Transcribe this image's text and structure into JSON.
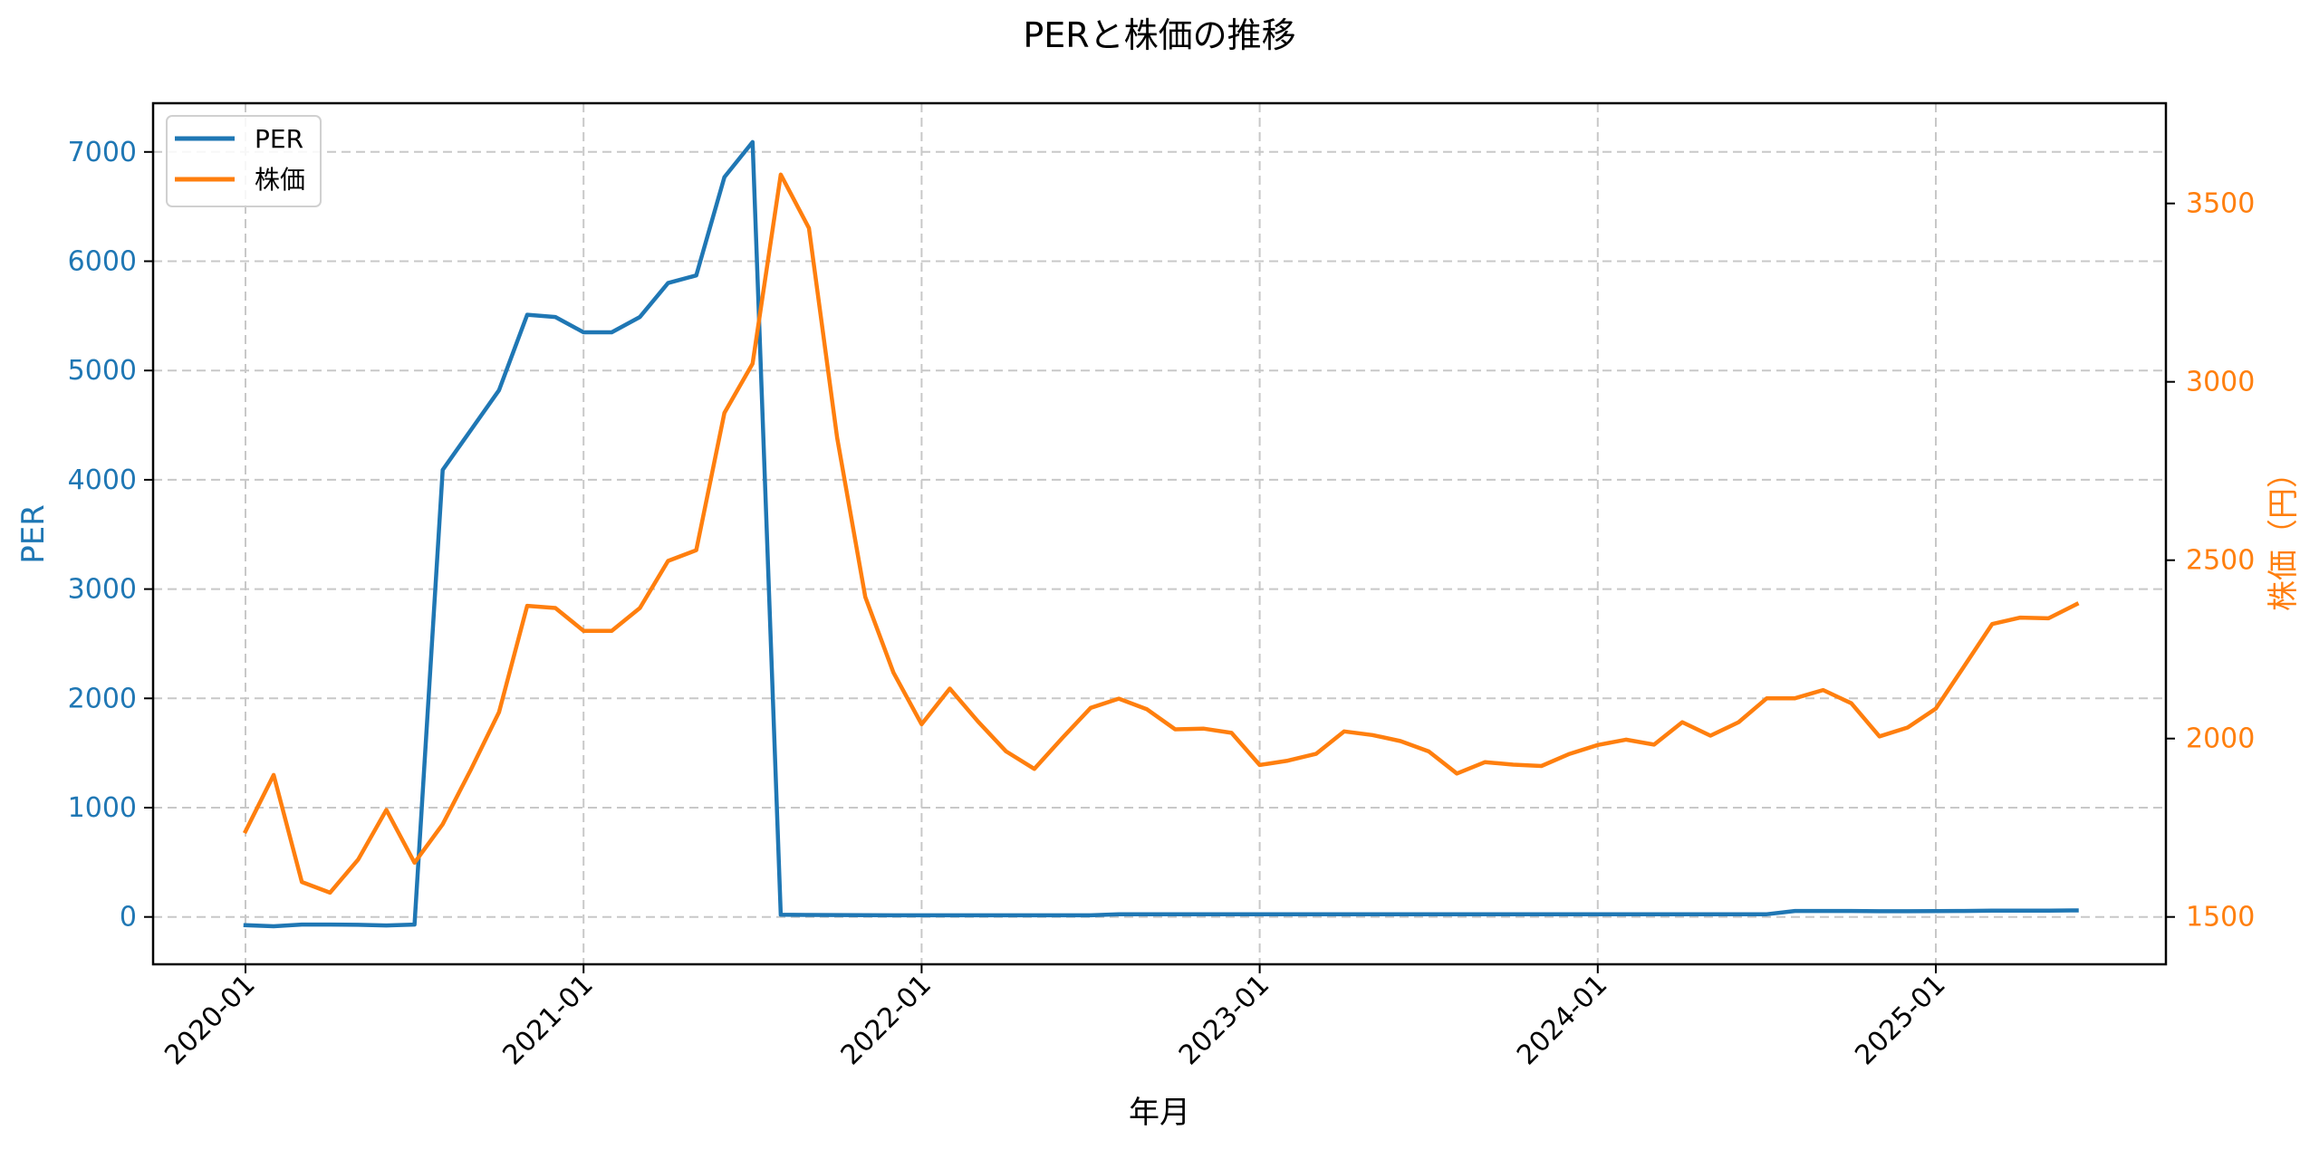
{
  "chart_data": {
    "type": "line",
    "title": "PERと株価の推移",
    "xlabel": "年月",
    "ylabel_left": "PER",
    "ylabel_right": "株価（円）",
    "ylim_left": [
      -440,
      7450
    ],
    "ylim_right": [
      1365,
      3780
    ],
    "yticks_left": [
      0,
      1000,
      2000,
      3000,
      4000,
      5000,
      6000,
      7000
    ],
    "yticks_right": [
      1500,
      2000,
      2500,
      3000,
      3500
    ],
    "xticks": [
      "2020-01",
      "2021-01",
      "2022-01",
      "2023-01",
      "2024-01",
      "2025-01"
    ],
    "xtick_index": [
      0,
      12,
      24,
      36,
      48,
      60
    ],
    "grid": true,
    "legend_position": "upper left",
    "colors": {
      "per": "#1f77b4",
      "price": "#ff7f0e"
    },
    "x": [
      "2020-01",
      "2020-02",
      "2020-03",
      "2020-04",
      "2020-05",
      "2020-06",
      "2020-07",
      "2020-08",
      "2020-09",
      "2020-10",
      "2020-11",
      "2020-12",
      "2021-01",
      "2021-02",
      "2021-03",
      "2021-04",
      "2021-05",
      "2021-06",
      "2021-07",
      "2021-08",
      "2021-09",
      "2021-10",
      "2021-11",
      "2021-12",
      "2022-01",
      "2022-02",
      "2022-03",
      "2022-04",
      "2022-05",
      "2022-06",
      "2022-07",
      "2022-08",
      "2022-09",
      "2022-10",
      "2022-11",
      "2022-12",
      "2023-01",
      "2023-02",
      "2023-03",
      "2023-04",
      "2023-05",
      "2023-06",
      "2023-07",
      "2023-08",
      "2023-09",
      "2023-10",
      "2023-11",
      "2023-12",
      "2024-01",
      "2024-02",
      "2024-03",
      "2024-04",
      "2024-05",
      "2024-06",
      "2024-07",
      "2024-08",
      "2024-09",
      "2024-10",
      "2024-11",
      "2024-12",
      "2025-01",
      "2025-02",
      "2025-03",
      "2025-04",
      "2025-05",
      "2025-06"
    ],
    "series": [
      {
        "name": "PER",
        "axis": "left",
        "values": [
          -75,
          -85,
          -70,
          -70,
          -72,
          -78,
          -70,
          4090,
          4455,
          4820,
          5510,
          5490,
          5350,
          5350,
          5490,
          5800,
          5870,
          6770,
          7090,
          20,
          18,
          17,
          16,
          15,
          15,
          15,
          15,
          15,
          15,
          15,
          15,
          25,
          25,
          25,
          25,
          25,
          25,
          25,
          25,
          25,
          25,
          25,
          25,
          25,
          25,
          25,
          25,
          25,
          25,
          25,
          25,
          25,
          25,
          25,
          25,
          55,
          55,
          55,
          52,
          52,
          53,
          55,
          58,
          58,
          58,
          60
        ]
      },
      {
        "name": "株価",
        "axis": "right",
        "values": [
          1740,
          1898,
          1598,
          1568,
          1661,
          1800,
          1652,
          1760,
          1913,
          2074,
          2372,
          2366,
          2302,
          2302,
          2366,
          2498,
          2528,
          2913,
          3051,
          3581,
          3431,
          2844,
          2397,
          2185,
          2040,
          2140,
          2048,
          1964,
          1915,
          2002,
          2086,
          2112,
          2082,
          2026,
          2028,
          2016,
          1926,
          1938,
          1957,
          2020,
          2010,
          1993,
          1964,
          1902,
          1934,
          1927,
          1923,
          1957,
          1982,
          1997,
          1983,
          2046,
          2008,
          2046,
          2113,
          2113,
          2136,
          2099,
          2006,
          2031,
          2084,
          2202,
          2321,
          2339,
          2337,
          2377
        ]
      }
    ]
  },
  "legend": {
    "items": [
      "PER",
      "株価"
    ]
  }
}
